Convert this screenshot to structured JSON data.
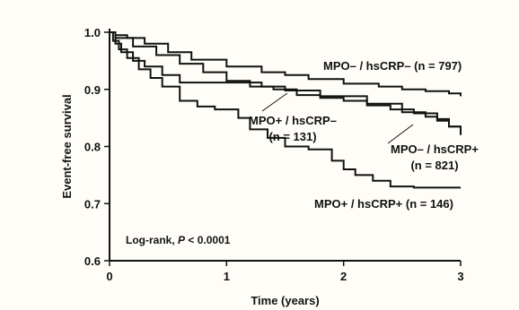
{
  "chart_data": {
    "type": "line",
    "step": true,
    "xlabel": "Time (years)",
    "ylabel": "Event-free survival",
    "xlim": [
      0,
      3
    ],
    "ylim": [
      0.6,
      1.0
    ],
    "xticks": [
      0,
      1,
      2,
      3
    ],
    "yticks": [
      0.6,
      0.7,
      0.8,
      0.9,
      1.0
    ],
    "x_tick_labels": [
      "0",
      "1",
      "2",
      "3"
    ],
    "y_tick_labels": [
      "0.6",
      "0.7",
      "0.8",
      "0.9",
      "1.0"
    ],
    "grid": false,
    "annotation": {
      "prefix": "Log-rank, ",
      "italic": "P",
      "suffix": " < 0.0001"
    },
    "series": [
      {
        "name": "MPO– / hsCRP– (n = 797)",
        "label_lines": [
          "MPO– / hsCRP– (n = 797)"
        ],
        "points": [
          [
            0,
            1.0
          ],
          [
            0.05,
            0.995
          ],
          [
            0.15,
            0.99
          ],
          [
            0.3,
            0.98
          ],
          [
            0.5,
            0.965
          ],
          [
            0.7,
            0.952
          ],
          [
            1.0,
            0.94
          ],
          [
            1.3,
            0.93
          ],
          [
            1.5,
            0.925
          ],
          [
            1.7,
            0.918
          ],
          [
            2.0,
            0.91
          ],
          [
            2.3,
            0.905
          ],
          [
            2.5,
            0.9
          ],
          [
            2.7,
            0.897
          ],
          [
            2.9,
            0.893
          ],
          [
            3.0,
            0.888
          ]
        ]
      },
      {
        "name": "MPO+ / hsCRP– (n = 131)",
        "label_lines": [
          "MPO+ / hsCRP–",
          "(n = 131)"
        ],
        "points": [
          [
            0,
            1.0
          ],
          [
            0.05,
            0.98
          ],
          [
            0.1,
            0.965
          ],
          [
            0.2,
            0.95
          ],
          [
            0.3,
            0.94
          ],
          [
            0.45,
            0.925
          ],
          [
            0.6,
            0.912
          ],
          [
            1.0,
            0.912
          ],
          [
            1.3,
            0.905
          ],
          [
            1.5,
            0.898
          ],
          [
            1.8,
            0.888
          ],
          [
            2.2,
            0.875
          ],
          [
            2.5,
            0.86
          ],
          [
            2.7,
            0.852
          ],
          [
            2.8,
            0.845
          ],
          [
            2.9,
            0.835
          ],
          [
            3.0,
            0.828
          ]
        ]
      },
      {
        "name": "MPO– / hsCRP+ (n = 821)",
        "label_lines": [
          "MPO– / hsCRP+",
          "(n = 821)"
        ],
        "points": [
          [
            0,
            1.0
          ],
          [
            0.05,
            0.99
          ],
          [
            0.2,
            0.975
          ],
          [
            0.4,
            0.96
          ],
          [
            0.6,
            0.945
          ],
          [
            0.8,
            0.93
          ],
          [
            1.0,
            0.915
          ],
          [
            1.2,
            0.905
          ],
          [
            1.4,
            0.9
          ],
          [
            1.6,
            0.89
          ],
          [
            1.8,
            0.885
          ],
          [
            2.0,
            0.88
          ],
          [
            2.2,
            0.872
          ],
          [
            2.4,
            0.865
          ],
          [
            2.6,
            0.858
          ],
          [
            2.8,
            0.848
          ],
          [
            2.9,
            0.835
          ],
          [
            3.0,
            0.82
          ]
        ]
      },
      {
        "name": "MPO+ / hsCRP+ (n = 146)",
        "label_lines": [
          "MPO+ / hsCRP+ (n = 146)"
        ],
        "points": [
          [
            0,
            1.0
          ],
          [
            0.03,
            0.985
          ],
          [
            0.08,
            0.97
          ],
          [
            0.15,
            0.955
          ],
          [
            0.25,
            0.935
          ],
          [
            0.35,
            0.92
          ],
          [
            0.45,
            0.905
          ],
          [
            0.6,
            0.88
          ],
          [
            0.75,
            0.87
          ],
          [
            0.9,
            0.865
          ],
          [
            1.0,
            0.865
          ],
          [
            1.1,
            0.85
          ],
          [
            1.2,
            0.83
          ],
          [
            1.35,
            0.815
          ],
          [
            1.5,
            0.8
          ],
          [
            1.7,
            0.795
          ],
          [
            1.8,
            0.795
          ],
          [
            1.9,
            0.775
          ],
          [
            2.0,
            0.76
          ],
          [
            2.1,
            0.75
          ],
          [
            2.25,
            0.74
          ],
          [
            2.4,
            0.73
          ],
          [
            2.6,
            0.728
          ],
          [
            3.0,
            0.728
          ]
        ]
      }
    ]
  }
}
